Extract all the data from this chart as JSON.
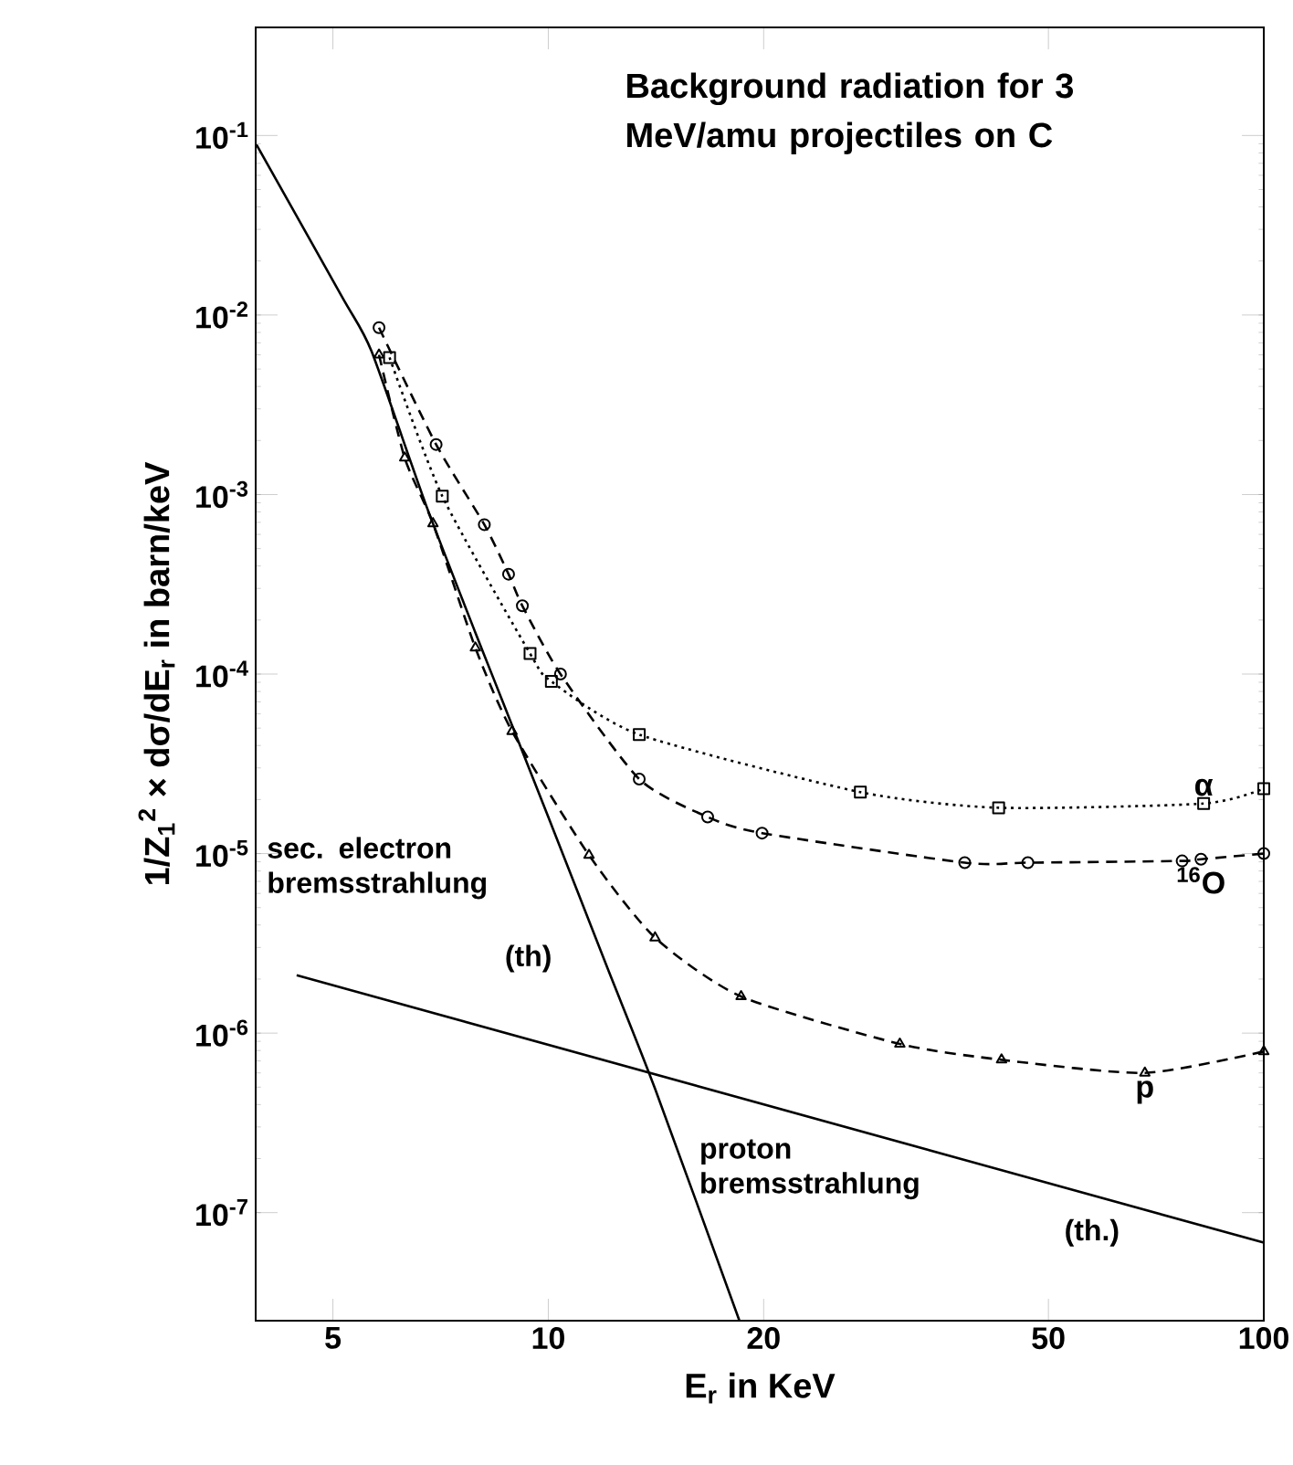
{
  "chart_data": {
    "type": "line",
    "title": "Background radiation for 3 MeV/amu projectiles on C",
    "xlabel": "E$_{r}$ in KeV",
    "ylabel": "1/Z$_{1}$$^{2}$ × dσ/dE$_{r}$ in barn/keV",
    "log": "xy",
    "xlim": [
      3.9,
      100
    ],
    "ylim": [
      2.5e-08,
      0.4
    ],
    "xticks": [
      5,
      10,
      20,
      50,
      100
    ],
    "yticks": [
      {
        "value": 1e-07,
        "label": "10$^{-7}$"
      },
      {
        "value": 1e-06,
        "label": "10$^{-6}$"
      },
      {
        "value": 1e-05,
        "label": "10$^{-5}$"
      },
      {
        "value": 0.0001,
        "label": "10$^{-4}$"
      },
      {
        "value": 0.001,
        "label": "10$^{-3}$"
      },
      {
        "value": 0.01,
        "label": "10$^{-2}$"
      },
      {
        "value": 0.1,
        "label": "10$^{-1}$"
      }
    ],
    "series": [
      {
        "color": "#000000",
        "line_style": "solid",
        "marker": "none",
        "x": [
          3.91,
          5.15,
          5.66,
          6.75,
          7.91,
          8.38,
          10,
          12.1,
          14.1,
          18.5
        ],
        "values": [
          0.089,
          0.0126,
          0.0063,
          0.00087,
          0.00017,
          9.5e-05,
          1.6e-05,
          2.3e-06,
          4.9e-07,
          2.5e-08
        ]
      },
      {
        "color": "#000000",
        "line_style": "solid",
        "marker": "none",
        "x": [
          4.45,
          100
        ],
        "values": [
          2.1e-06,
          6.8e-08
        ]
      },
      {
        "name": "p",
        "color": "#000000",
        "line_style": "dashed",
        "marker": "triangle",
        "x": [
          5.8,
          6.3,
          6.9,
          7.91,
          8.9,
          11.4,
          14.1,
          18.6,
          31,
          43,
          68.2,
          100
        ],
        "values": [
          0.006,
          0.0016,
          0.00069,
          0.00014,
          4.8e-05,
          9.8e-06,
          3.4e-06,
          1.6e-06,
          8.7e-07,
          7.1e-07,
          6e-07,
          7.9e-07
        ]
      },
      {
        "name": "α",
        "color": "#000000",
        "line_style": "dotted",
        "marker": "square",
        "x": [
          6.0,
          7.11,
          9.43,
          10.1,
          13.4,
          27.3,
          42.6,
          82.4,
          100
        ],
        "values": [
          0.0058,
          0.00098,
          0.00013,
          9.1e-05,
          4.6e-05,
          2.2e-05,
          1.8e-05,
          1.9e-05,
          2.3e-05
        ]
      },
      {
        "name": "$^{16}$O",
        "color": "#000000",
        "line_style": "dashed",
        "marker": "circle",
        "x": [
          5.8,
          6.97,
          8.14,
          8.8,
          9.2,
          10.4,
          13.4,
          16.7,
          19.9,
          38.2,
          46.8,
          76.9,
          81.7,
          100
        ],
        "values": [
          0.0085,
          0.0019,
          0.00068,
          0.00036,
          0.00024,
          0.0001,
          2.6e-05,
          1.6e-05,
          1.3e-05,
          8.9e-06,
          8.9e-06,
          9.1e-06,
          9.3e-06,
          1e-05
        ]
      }
    ],
    "annotations": [
      "sec. electron bremsstrahlung",
      "(th)",
      "proton bremsstrahlung",
      "(th.)"
    ]
  }
}
